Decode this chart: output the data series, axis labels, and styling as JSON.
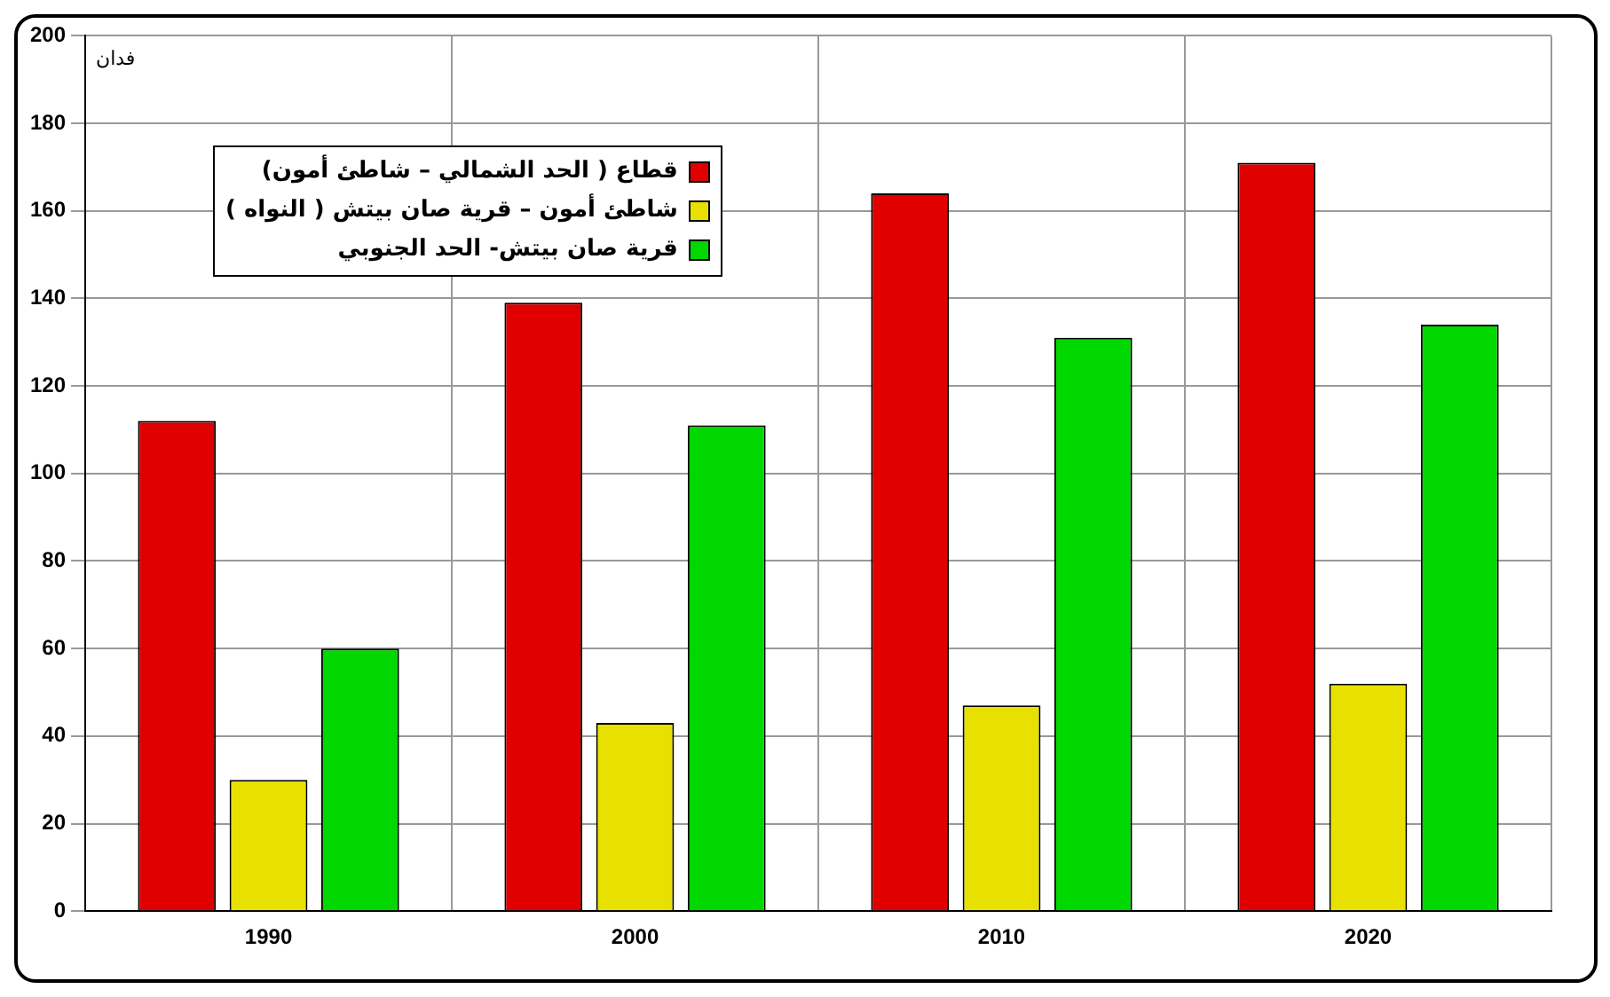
{
  "chart_data": {
    "type": "bar",
    "ylabel": "فدان",
    "categories": [
      "1990",
      "2000",
      "2010",
      "2020"
    ],
    "series": [
      {
        "name": "قطاع ( الحد الشمالي – شاطئ أمون)",
        "color": "#e00000",
        "values": [
          112,
          139,
          164,
          171
        ]
      },
      {
        "name": "شاطئ أمون – قرية صان بيتش ( النواه )",
        "color": "#e8e000",
        "values": [
          30,
          43,
          47,
          52
        ]
      },
      {
        "name": "قرية صان بيتش- الحد الجنوبي",
        "color": "#00d800",
        "values": [
          60,
          111,
          131,
          134
        ]
      }
    ],
    "ylim": [
      0,
      200
    ],
    "yticks": [
      0,
      20,
      40,
      60,
      80,
      100,
      120,
      140,
      160,
      180,
      200
    ],
    "grid": true,
    "legend": "top left"
  }
}
